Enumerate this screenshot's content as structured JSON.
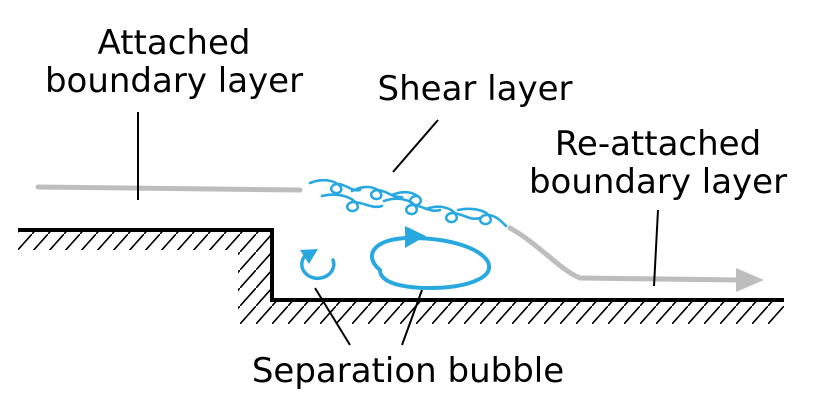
{
  "labels": {
    "attached": [
      "Attached",
      "boundary layer"
    ],
    "shear": "Shear layer",
    "reattached": [
      "Re-attached",
      "boundary layer"
    ],
    "separation": "Separation bubble"
  },
  "colors": {
    "line": "#000000",
    "boundary_layer": "#bdbdbd",
    "vortex": "#29a8e0"
  },
  "icons": {
    "flow_arrow": "arrow-head-right",
    "vortex_small": "counter-clockwise-circular-arrow",
    "vortex_large": "clockwise-circular-arrow"
  }
}
